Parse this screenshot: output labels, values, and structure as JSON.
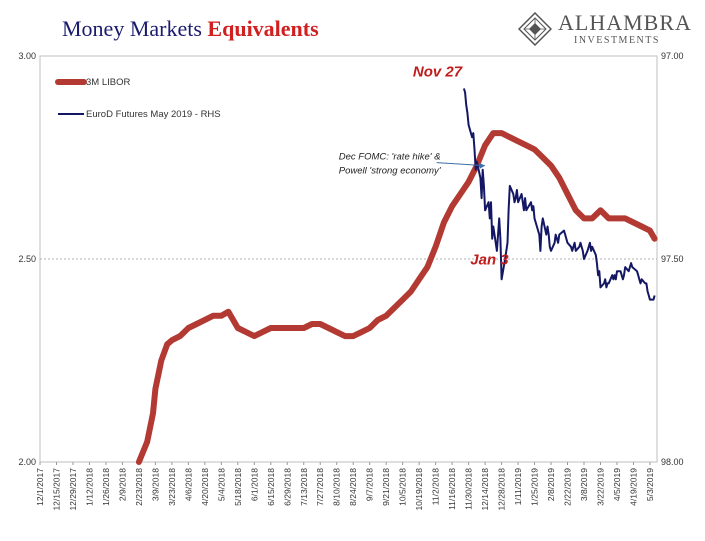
{
  "title_part1": "Money Markets",
  "title_part2": "Equivalents",
  "logo": {
    "name": "ALHAMBRA",
    "sub": "INVESTMENTS"
  },
  "colors": {
    "libor": "#b23a32",
    "eurod": "#141764",
    "annotation_red": "#c01c1c",
    "title_blue": "#1a1a6e"
  },
  "chart_data": {
    "type": "line",
    "left_axis": {
      "min": 2.0,
      "max": 3.0,
      "ticks": [
        "2.00",
        "2.50",
        "3.00"
      ],
      "values": [
        2.0,
        2.5,
        3.0
      ]
    },
    "right_axis": {
      "min": 97.0,
      "max": 98.0,
      "inverted": true,
      "ticks": [
        "97.00",
        "97.50",
        "98.00"
      ],
      "values": [
        97.0,
        97.5,
        98.0
      ]
    },
    "gridline": 2.5,
    "x_tick_labels": [
      "12/1/2017",
      "12/15/2017",
      "12/29/2017",
      "1/12/2018",
      "1/26/2018",
      "2/9/2018",
      "2/23/2018",
      "3/9/2018",
      "3/23/2018",
      "4/6/2018",
      "4/20/2018",
      "5/4/2018",
      "5/18/2018",
      "6/1/2018",
      "6/15/2018",
      "6/29/2018",
      "7/13/2018",
      "7/27/2018",
      "8/10/2018",
      "8/24/2018",
      "9/7/2018",
      "9/21/2018",
      "10/5/2018",
      "10/19/2018",
      "11/2/2018",
      "11/16/2018",
      "11/30/2018",
      "12/14/2018",
      "12/28/2018",
      "1/11/2019",
      "1/25/2019",
      "2/8/2019",
      "2/22/2019",
      "3/8/2019",
      "3/22/2019",
      "4/5/2019",
      "4/19/2019",
      "5/3/2019"
    ],
    "series": [
      {
        "name": "3M LIBOR",
        "axis": "left",
        "points": [
          [
            "2/23/2018",
            2.0
          ],
          [
            "3/2/2018",
            2.05
          ],
          [
            "3/7/2018",
            2.12
          ],
          [
            "3/9/2018",
            2.18
          ],
          [
            "3/14/2018",
            2.25
          ],
          [
            "3/19/2018",
            2.29
          ],
          [
            "3/23/2018",
            2.3
          ],
          [
            "3/30/2018",
            2.31
          ],
          [
            "4/6/2018",
            2.33
          ],
          [
            "4/13/2018",
            2.34
          ],
          [
            "4/20/2018",
            2.35
          ],
          [
            "4/27/2018",
            2.36
          ],
          [
            "5/4/2018",
            2.36
          ],
          [
            "5/10/2018",
            2.37
          ],
          [
            "5/14/2018",
            2.35
          ],
          [
            "5/18/2018",
            2.33
          ],
          [
            "5/25/2018",
            2.32
          ],
          [
            "6/1/2018",
            2.31
          ],
          [
            "6/8/2018",
            2.32
          ],
          [
            "6/15/2018",
            2.33
          ],
          [
            "6/22/2018",
            2.33
          ],
          [
            "6/29/2018",
            2.33
          ],
          [
            "7/6/2018",
            2.33
          ],
          [
            "7/13/2018",
            2.33
          ],
          [
            "7/20/2018",
            2.34
          ],
          [
            "7/27/2018",
            2.34
          ],
          [
            "8/3/2018",
            2.33
          ],
          [
            "8/10/2018",
            2.32
          ],
          [
            "8/17/2018",
            2.31
          ],
          [
            "8/24/2018",
            2.31
          ],
          [
            "8/31/2018",
            2.32
          ],
          [
            "9/7/2018",
            2.33
          ],
          [
            "9/14/2018",
            2.35
          ],
          [
            "9/21/2018",
            2.36
          ],
          [
            "9/28/2018",
            2.38
          ],
          [
            "10/5/2018",
            2.4
          ],
          [
            "10/12/2018",
            2.42
          ],
          [
            "10/19/2018",
            2.45
          ],
          [
            "10/26/2018",
            2.48
          ],
          [
            "11/2/2018",
            2.53
          ],
          [
            "11/9/2018",
            2.59
          ],
          [
            "11/16/2018",
            2.63
          ],
          [
            "11/23/2018",
            2.66
          ],
          [
            "11/30/2018",
            2.69
          ],
          [
            "12/7/2018",
            2.73
          ],
          [
            "12/14/2018",
            2.78
          ],
          [
            "12/21/2018",
            2.81
          ],
          [
            "12/28/2018",
            2.81
          ],
          [
            "1/4/2019",
            2.8
          ],
          [
            "1/11/2019",
            2.79
          ],
          [
            "1/18/2019",
            2.78
          ],
          [
            "1/25/2019",
            2.77
          ],
          [
            "2/1/2019",
            2.75
          ],
          [
            "2/8/2019",
            2.73
          ],
          [
            "2/15/2019",
            2.7
          ],
          [
            "2/22/2019",
            2.66
          ],
          [
            "3/1/2019",
            2.62
          ],
          [
            "3/8/2019",
            2.6
          ],
          [
            "3/15/2019",
            2.6
          ],
          [
            "3/22/2019",
            2.62
          ],
          [
            "3/29/2019",
            2.6
          ],
          [
            "4/5/2019",
            2.6
          ],
          [
            "4/12/2019",
            2.6
          ],
          [
            "4/19/2019",
            2.59
          ],
          [
            "4/26/2019",
            2.58
          ],
          [
            "5/3/2019",
            2.57
          ],
          [
            "5/7/2019",
            2.55
          ]
        ]
      },
      {
        "name": "EuroD Futures May 2019 - RHS",
        "axis": "right",
        "points": [
          [
            "11/26/2018",
            97.08
          ],
          [
            "11/27/2018",
            97.09
          ],
          [
            "11/28/2018",
            97.12
          ],
          [
            "11/29/2018",
            97.14
          ],
          [
            "11/30/2018",
            97.17
          ],
          [
            "12/3/2018",
            97.2
          ],
          [
            "12/4/2018",
            97.19
          ],
          [
            "12/5/2018",
            97.23
          ],
          [
            "12/6/2018",
            97.28
          ],
          [
            "12/7/2018",
            97.26
          ],
          [
            "12/10/2018",
            97.3
          ],
          [
            "12/11/2018",
            97.35
          ],
          [
            "12/12/2018",
            97.28
          ],
          [
            "12/13/2018",
            97.32
          ],
          [
            "12/14/2018",
            97.38
          ],
          [
            "12/17/2018",
            97.36
          ],
          [
            "12/18/2018",
            97.4
          ],
          [
            "12/19/2018",
            97.36
          ],
          [
            "12/20/2018",
            97.45
          ],
          [
            "12/21/2018",
            97.42
          ],
          [
            "12/24/2018",
            97.48
          ],
          [
            "12/26/2018",
            97.4
          ],
          [
            "12/27/2018",
            97.45
          ],
          [
            "12/28/2018",
            97.55
          ],
          [
            "12/31/2018",
            97.5
          ],
          [
            "1/2/2019",
            97.46
          ],
          [
            "1/3/2019",
            97.38
          ],
          [
            "1/4/2019",
            97.32
          ],
          [
            "1/7/2019",
            97.34
          ],
          [
            "1/8/2019",
            97.36
          ],
          [
            "1/9/2019",
            97.35
          ],
          [
            "1/10/2019",
            97.33
          ],
          [
            "1/11/2019",
            97.36
          ],
          [
            "1/14/2019",
            97.34
          ],
          [
            "1/15/2019",
            97.36
          ],
          [
            "1/16/2019",
            97.38
          ],
          [
            "1/17/2019",
            97.35
          ],
          [
            "1/18/2019",
            97.38
          ],
          [
            "1/22/2019",
            97.36
          ],
          [
            "1/23/2019",
            97.38
          ],
          [
            "1/24/2019",
            97.37
          ],
          [
            "1/25/2019",
            97.4
          ],
          [
            "1/28/2019",
            97.43
          ],
          [
            "1/29/2019",
            97.44
          ],
          [
            "1/30/2019",
            97.48
          ],
          [
            "1/31/2019",
            97.42
          ],
          [
            "2/1/2019",
            97.4
          ],
          [
            "2/4/2019",
            97.44
          ],
          [
            "2/5/2019",
            97.42
          ],
          [
            "2/6/2019",
            97.44
          ],
          [
            "2/7/2019",
            97.47
          ],
          [
            "2/8/2019",
            97.48
          ],
          [
            "2/11/2019",
            97.46
          ],
          [
            "2/12/2019",
            97.44
          ],
          [
            "2/13/2019",
            97.45
          ],
          [
            "2/14/2019",
            97.46
          ],
          [
            "2/15/2019",
            97.44
          ],
          [
            "2/19/2019",
            97.43
          ],
          [
            "2/20/2019",
            97.44
          ],
          [
            "2/21/2019",
            97.45
          ],
          [
            "2/22/2019",
            97.46
          ],
          [
            "2/25/2019",
            97.47
          ],
          [
            "2/26/2019",
            97.48
          ],
          [
            "2/27/2019",
            97.47
          ],
          [
            "2/28/2019",
            97.46
          ],
          [
            "3/1/2019",
            97.48
          ],
          [
            "3/4/2019",
            97.47
          ],
          [
            "3/5/2019",
            97.46
          ],
          [
            "3/6/2019",
            97.47
          ],
          [
            "3/7/2019",
            97.48
          ],
          [
            "3/8/2019",
            97.5
          ],
          [
            "3/11/2019",
            97.48
          ],
          [
            "3/12/2019",
            97.47
          ],
          [
            "3/13/2019",
            97.46
          ],
          [
            "3/14/2019",
            97.48
          ],
          [
            "3/15/2019",
            97.47
          ],
          [
            "3/18/2019",
            97.49
          ],
          [
            "3/19/2019",
            97.51
          ],
          [
            "3/20/2019",
            97.54
          ],
          [
            "3/21/2019",
            97.53
          ],
          [
            "3/22/2019",
            97.57
          ],
          [
            "3/25/2019",
            97.56
          ],
          [
            "3/26/2019",
            97.55
          ],
          [
            "3/27/2019",
            97.57
          ],
          [
            "3/28/2019",
            97.56
          ],
          [
            "3/29/2019",
            97.56
          ],
          [
            "4/1/2019",
            97.54
          ],
          [
            "4/2/2019",
            97.55
          ],
          [
            "4/3/2019",
            97.54
          ],
          [
            "4/4/2019",
            97.55
          ],
          [
            "4/5/2019",
            97.53
          ],
          [
            "4/8/2019",
            97.53
          ],
          [
            "4/9/2019",
            97.54
          ],
          [
            "4/10/2019",
            97.55
          ],
          [
            "4/11/2019",
            97.54
          ],
          [
            "4/12/2019",
            97.52
          ],
          [
            "4/15/2019",
            97.53
          ],
          [
            "4/16/2019",
            97.52
          ],
          [
            "4/17/2019",
            97.51
          ],
          [
            "4/18/2019",
            97.52
          ],
          [
            "4/22/2019",
            97.53
          ],
          [
            "4/23/2019",
            97.54
          ],
          [
            "4/24/2019",
            97.55
          ],
          [
            "4/25/2019",
            97.56
          ],
          [
            "4/26/2019",
            97.55
          ],
          [
            "4/29/2019",
            97.56
          ],
          [
            "4/30/2019",
            97.56
          ],
          [
            "5/1/2019",
            97.58
          ],
          [
            "5/2/2019",
            97.59
          ],
          [
            "5/3/2019",
            97.6
          ],
          [
            "5/6/2019",
            97.6
          ],
          [
            "5/7/2019",
            97.59
          ]
        ]
      }
    ],
    "legend": {
      "placement": "top-left",
      "entries": [
        "3M LIBOR",
        "EuroD Futures May 2019 - RHS"
      ]
    },
    "annotations": [
      {
        "text": "Nov 27",
        "style": "red-bold",
        "at_date": "11/27/2018",
        "at_left_value": 2.95
      },
      {
        "text": "Jan 3",
        "style": "red-bold",
        "at_date": "1/3/2019",
        "at_left_value": 2.55
      },
      {
        "line1": "Dec FOMC: 'rate hike' &",
        "line2": "Powell 'strong economy'",
        "style": "italic",
        "at_date": "11/30/2018",
        "at_left_value": 2.72,
        "arrow_to_date": "12/19/2018",
        "arrow_to_left_value": 2.73
      }
    ]
  }
}
